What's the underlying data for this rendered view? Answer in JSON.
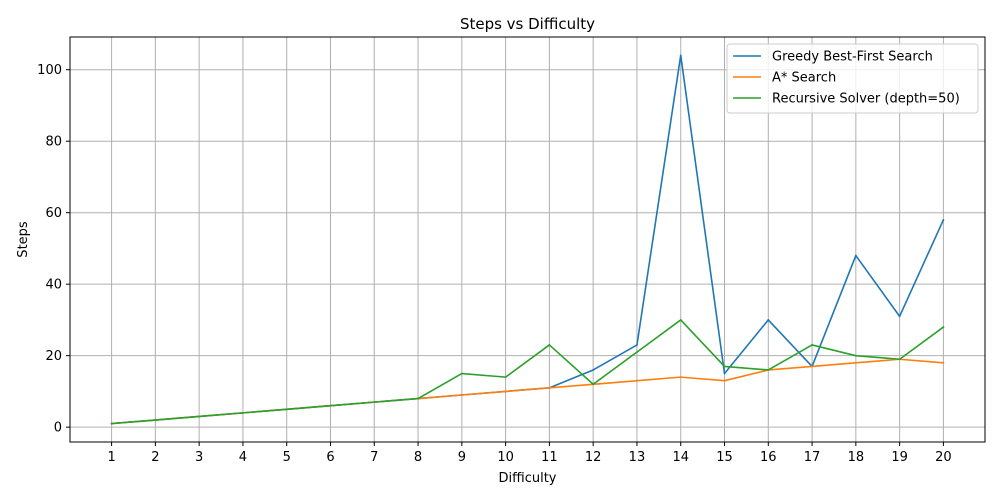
{
  "chart_data": {
    "type": "line",
    "title": "Steps vs Difficulty",
    "xlabel": "Difficulty",
    "ylabel": "Steps",
    "x": [
      1,
      2,
      3,
      4,
      5,
      6,
      7,
      8,
      9,
      10,
      11,
      12,
      13,
      14,
      15,
      16,
      17,
      18,
      19,
      20
    ],
    "xlim": [
      0.05,
      20.95
    ],
    "ylim": [
      -4.15,
      109.15
    ],
    "yticks": [
      0,
      20,
      40,
      60,
      80,
      100
    ],
    "grid": true,
    "legend_position": "top-right",
    "series": [
      {
        "name": "Greedy Best-First Search",
        "color": "#1f77b4",
        "values": [
          1,
          2,
          3,
          4,
          5,
          6,
          7,
          8,
          9,
          10,
          11,
          16,
          23,
          104,
          15,
          30,
          17,
          48,
          31,
          58
        ]
      },
      {
        "name": "A* Search",
        "color": "#ff7f0e",
        "values": [
          1,
          2,
          3,
          4,
          5,
          6,
          7,
          8,
          9,
          10,
          11,
          12,
          13,
          14,
          13,
          16,
          17,
          18,
          19,
          18
        ]
      },
      {
        "name": "Recursive Solver (depth=50)",
        "color": "#2ca02c",
        "values": [
          1,
          2,
          3,
          4,
          5,
          6,
          7,
          8,
          15,
          14,
          23,
          12,
          21,
          30,
          17,
          16,
          23,
          20,
          19,
          28
        ]
      }
    ]
  }
}
